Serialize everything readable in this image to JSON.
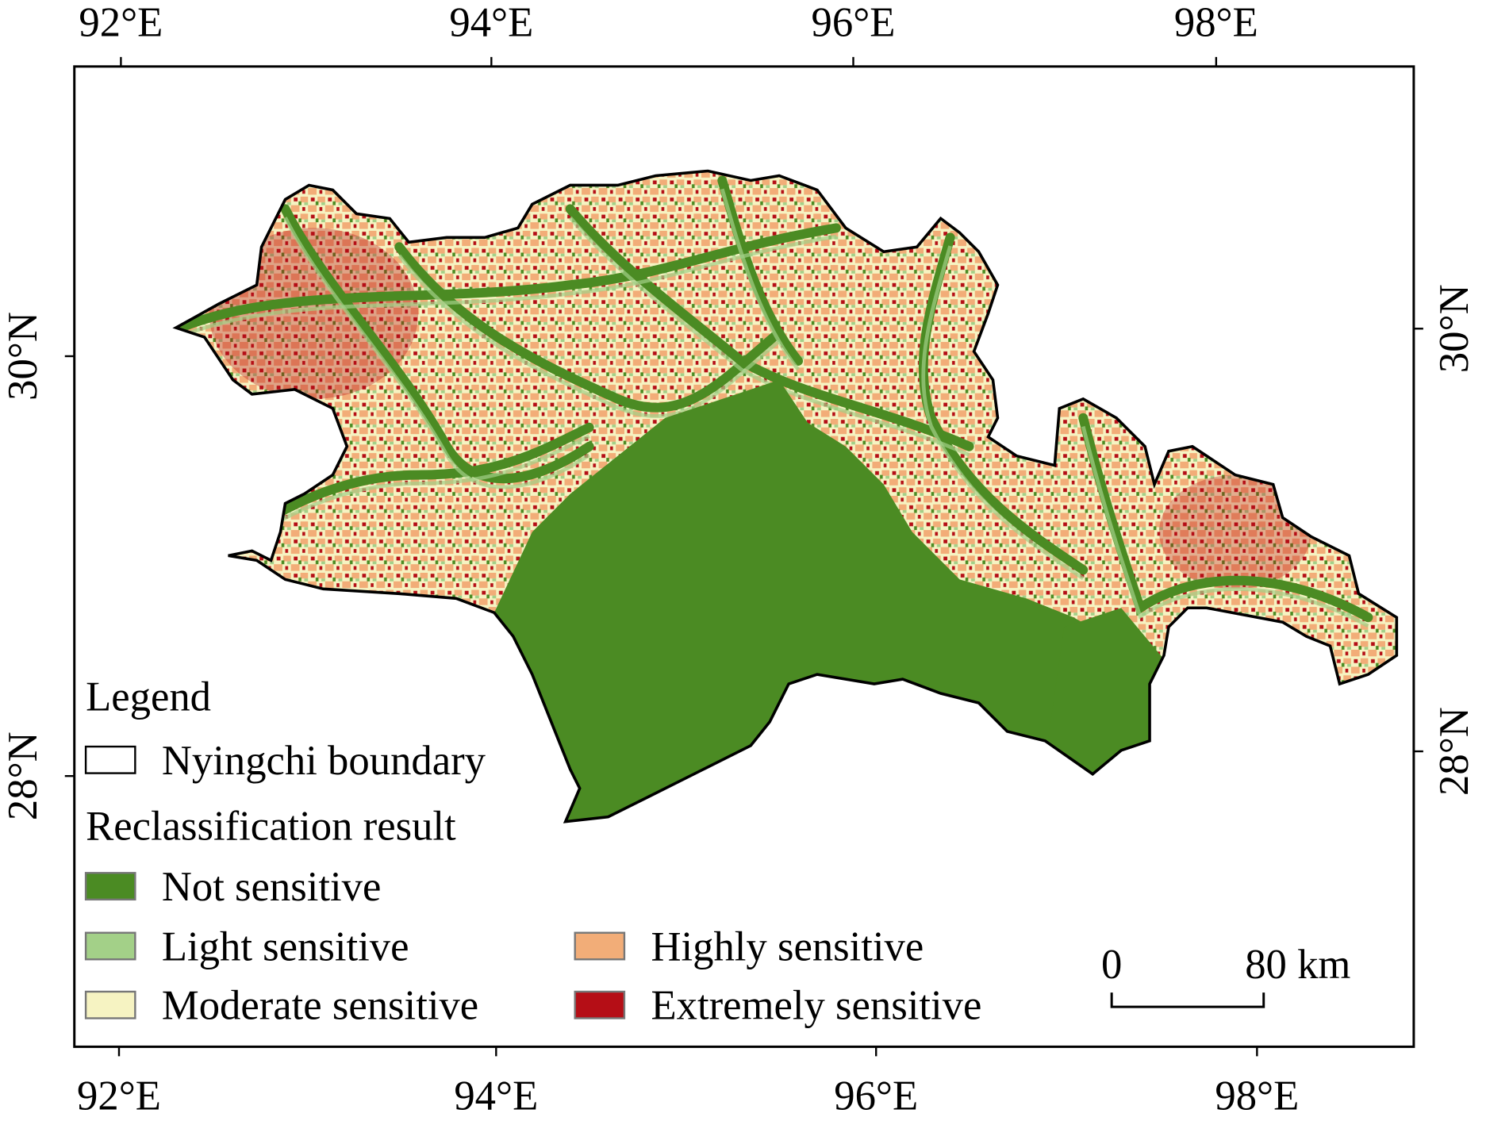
{
  "map": {
    "top_labels": [
      "92°E",
      "94°E",
      "96°E",
      "98°E"
    ],
    "bottom_labels": [
      "92°E",
      "94°E",
      "96°E",
      "98°E"
    ],
    "left_labels": [
      "30°N",
      "28°N"
    ],
    "right_labels": [
      "30°N",
      "28°N"
    ],
    "legend": {
      "title": "Legend",
      "boundary": "Nyingchi boundary",
      "group_title": "Reclassification result",
      "classes": [
        {
          "name": "Not sensitive",
          "color": "#4b8b23"
        },
        {
          "name": "Light sensitive",
          "color": "#a3d088"
        },
        {
          "name": "Moderate sensitive",
          "color": "#f6f3c2"
        },
        {
          "name": "Highly sensitive",
          "color": "#f2ad78"
        },
        {
          "name": "Extremely sensitive",
          "color": "#b50e16"
        }
      ]
    },
    "scale_bar": {
      "start": "0",
      "end": "80 km"
    }
  }
}
